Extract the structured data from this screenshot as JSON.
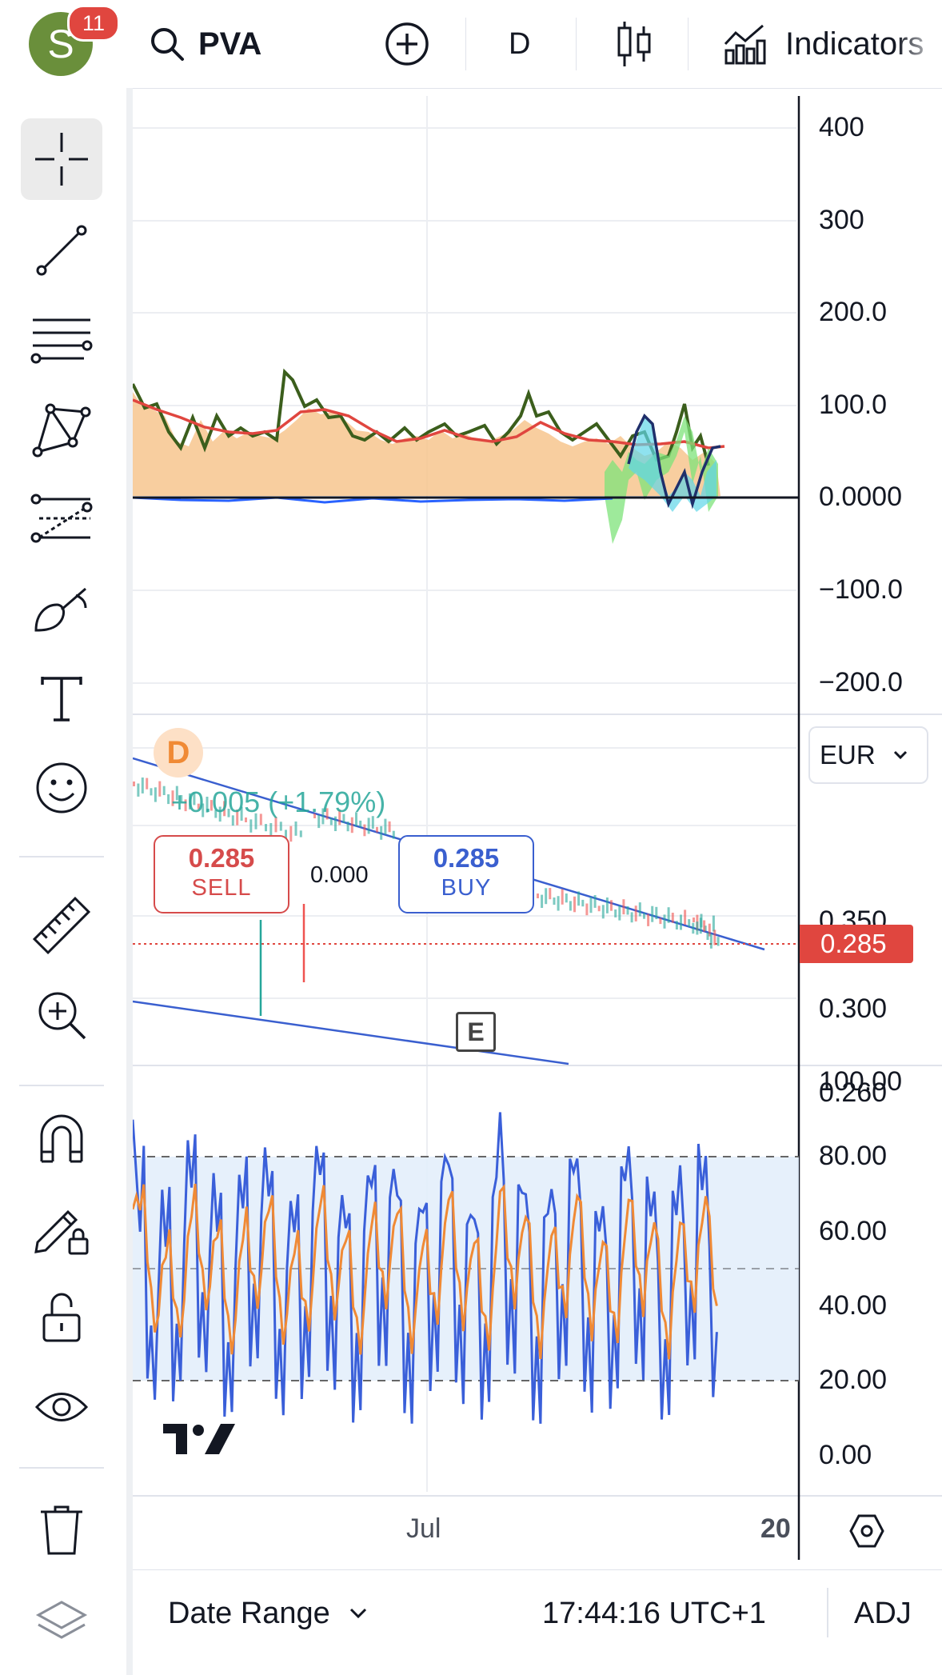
{
  "header": {
    "avatar_letter": "S",
    "notifications": "11",
    "symbol": "PVA",
    "interval": "D",
    "indicators_label": "Indicators"
  },
  "sidebar_tools": [
    "crosshair-icon",
    "trend-line-icon",
    "fib-lines-icon",
    "pattern-icon",
    "projection-icon",
    "brush-icon",
    "text-icon",
    "emoji-icon",
    "ruler-icon",
    "zoom-in-icon",
    "magnet-icon",
    "lock-drawing-icon",
    "unlock-icon",
    "eye-icon",
    "trash-icon",
    "layers-icon"
  ],
  "pane1": {
    "ticks": [
      "400",
      "300",
      "200.0",
      "100.0",
      "0.0000",
      "−100.0",
      "−200.0"
    ]
  },
  "pane2": {
    "currency": "EUR",
    "change_text": "+0.005 (+1.79%)",
    "sell_price": "0.285",
    "sell_label": "SELL",
    "buy_price": "0.285",
    "buy_label": "BUY",
    "spread": "0.000",
    "last_price": "0.285",
    "marker_d": "D",
    "marker_e": "E",
    "ticks": [
      "0.350",
      "0.300",
      "0.260"
    ]
  },
  "pane3": {
    "ticks": [
      "100.00",
      "80.00",
      "60.00",
      "40.00",
      "20.00",
      "0.00"
    ]
  },
  "time_axis": {
    "month": "Jul",
    "day": "20"
  },
  "footer": {
    "date_range": "Date Range",
    "time": "17:44:16 UTC+1",
    "adj": "ADJ"
  },
  "colors": {
    "accent_red": "#e0463f",
    "accent_blue": "#2962ff",
    "sell": "#d64b4b",
    "buy": "#3a5fcf"
  }
}
